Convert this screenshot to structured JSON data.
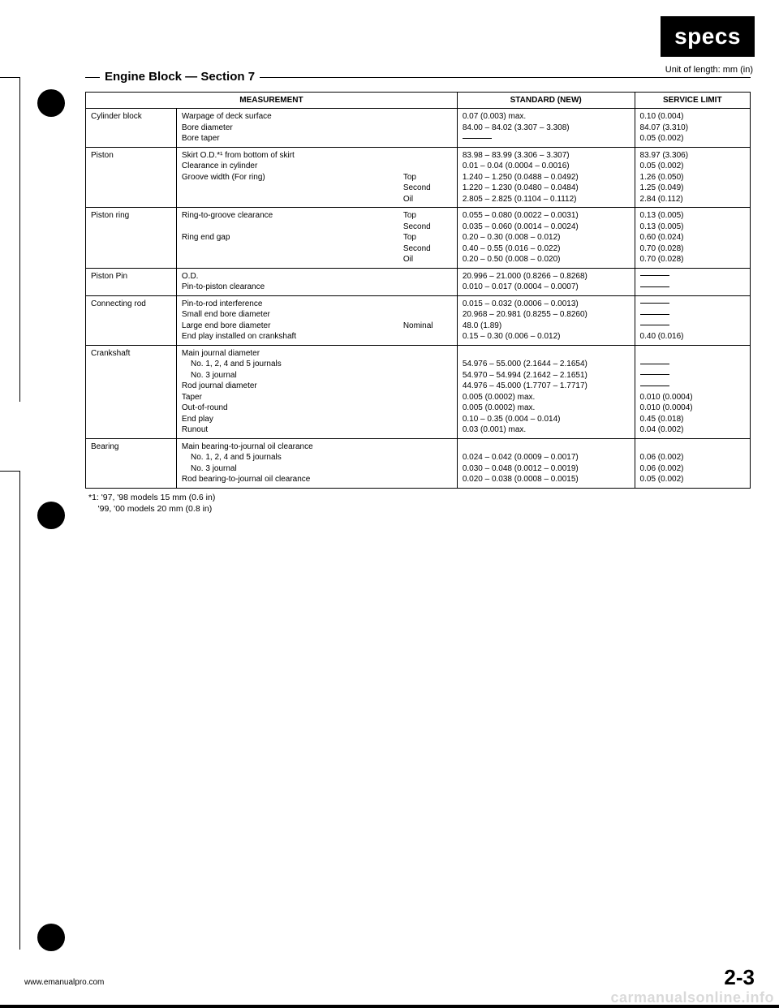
{
  "badge": "specs",
  "unit_note": "Unit of length: mm (in)",
  "section_title": "Engine Block — Section 7",
  "headers": {
    "measurement": "MEASUREMENT",
    "standard": "STANDARD (NEW)",
    "service_limit": "SERVICE LIMIT"
  },
  "rows": [
    {
      "item": "Cylinder block",
      "measurements": [
        {
          "label": "Warpage of deck surface",
          "sub": "",
          "std": "0.07 (0.003) max.",
          "lim": "0.10 (0.004)"
        },
        {
          "label": "Bore diameter",
          "sub": "",
          "std": "84.00 – 84.02 (3.307 – 3.308)",
          "lim": "84.07 (3.310)"
        },
        {
          "label": "Bore taper",
          "sub": "",
          "std": "—",
          "lim": "0.05 (0.002)"
        }
      ]
    },
    {
      "item": "Piston",
      "measurements": [
        {
          "label": "Skirt O.D.*¹ from bottom of skirt",
          "sub": "",
          "std": "83.98 – 83.99 (3.306 – 3.307)",
          "lim": "83.97 (3.306)"
        },
        {
          "label": "Clearance in cylinder",
          "sub": "",
          "std": "0.01 – 0.04 (0.0004 – 0.0016)",
          "lim": "0.05 (0.002)"
        },
        {
          "label": "Groove width (For ring)",
          "sub": "Top",
          "std": "1.240 – 1.250 (0.0488 – 0.0492)",
          "lim": "1.26 (0.050)"
        },
        {
          "label": "",
          "sub": "Second",
          "std": "1.220 – 1.230 (0.0480 – 0.0484)",
          "lim": "1.25 (0.049)"
        },
        {
          "label": "",
          "sub": "Oil",
          "std": "2.805 – 2.825 (0.1104 – 0.1112)",
          "lim": "2.84 (0.112)"
        }
      ]
    },
    {
      "item": "Piston ring",
      "measurements": [
        {
          "label": "Ring-to-groove clearance",
          "sub": "Top",
          "std": "0.055 – 0.080 (0.0022 – 0.0031)",
          "lim": "0.13 (0.005)"
        },
        {
          "label": "",
          "sub": "Second",
          "std": "0.035 – 0.060 (0.0014 – 0.0024)",
          "lim": "0.13 (0.005)"
        },
        {
          "label": "Ring end gap",
          "sub": "Top",
          "std": "0.20 – 0.30 (0.008 – 0.012)",
          "lim": "0.60 (0.024)"
        },
        {
          "label": "",
          "sub": "Second",
          "std": "0.40 – 0.55 (0.016 – 0.022)",
          "lim": "0.70 (0.028)"
        },
        {
          "label": "",
          "sub": "Oil",
          "std": "0.20 – 0.50 (0.008 – 0.020)",
          "lim": "0.70 (0.028)"
        }
      ]
    },
    {
      "item": "Piston Pin",
      "measurements": [
        {
          "label": "O.D.",
          "sub": "",
          "std": "20.996 – 21.000 (0.8266 – 0.8268)",
          "lim": "—"
        },
        {
          "label": "Pin-to-piston clearance",
          "sub": "",
          "std": "0.010 – 0.017 (0.0004 – 0.0007)",
          "lim": "—"
        }
      ]
    },
    {
      "item": "Connecting rod",
      "measurements": [
        {
          "label": "Pin-to-rod interference",
          "sub": "",
          "std": "0.015 – 0.032 (0.0006 – 0.0013)",
          "lim": "—"
        },
        {
          "label": "Small end bore diameter",
          "sub": "",
          "std": "20.968 – 20.981 (0.8255 – 0.8260)",
          "lim": "—"
        },
        {
          "label": "Large end bore diameter",
          "sub": "Nominal",
          "std": "48.0 (1.89)",
          "lim": "—"
        },
        {
          "label": "End play installed on crankshaft",
          "sub": "",
          "std": "0.15 – 0.30 (0.006 – 0.012)",
          "lim": "0.40 (0.016)"
        }
      ]
    },
    {
      "item": "Crankshaft",
      "measurements": [
        {
          "label": "Main journal diameter",
          "sub": "",
          "std": "",
          "lim": ""
        },
        {
          "label": "    No. 1, 2, 4 and 5 journals",
          "sub": "",
          "std": "54.976 – 55.000 (2.1644 – 2.1654)",
          "lim": "—"
        },
        {
          "label": "    No. 3 journal",
          "sub": "",
          "std": "54.970 – 54.994 (2.1642 – 2.1651)",
          "lim": "—"
        },
        {
          "label": "Rod journal diameter",
          "sub": "",
          "std": "44.976 – 45.000 (1.7707 – 1.7717)",
          "lim": "—"
        },
        {
          "label": "Taper",
          "sub": "",
          "std": "0.005 (0.0002) max.",
          "lim": "0.010 (0.0004)"
        },
        {
          "label": "Out-of-round",
          "sub": "",
          "std": "0.005 (0.0002) max.",
          "lim": "0.010 (0.0004)"
        },
        {
          "label": "End play",
          "sub": "",
          "std": "0.10 – 0.35 (0.004 – 0.014)",
          "lim": "0.45 (0.018)"
        },
        {
          "label": "Runout",
          "sub": "",
          "std": "0.03 (0.001) max.",
          "lim": "0.04 (0.002)"
        }
      ]
    },
    {
      "item": "Bearing",
      "measurements": [
        {
          "label": "Main bearing-to-journal oil clearance",
          "sub": "",
          "std": "",
          "lim": ""
        },
        {
          "label": "    No. 1, 2, 4 and 5 journals",
          "sub": "",
          "std": "0.024 – 0.042 (0.0009 – 0.0017)",
          "lim": "0.06 (0.002)"
        },
        {
          "label": "    No. 3 journal",
          "sub": "",
          "std": "0.030 – 0.048 (0.0012 – 0.0019)",
          "lim": "0.06 (0.002)"
        },
        {
          "label": "Rod bearing-to-journal oil clearance",
          "sub": "",
          "std": "0.020 – 0.038 (0.0008 – 0.0015)",
          "lim": "0.05 (0.002)"
        }
      ]
    }
  ],
  "footnote_line1": "*1: '97, '98 models 15 mm (0.6 in)",
  "footnote_line2": "    '99, '00 models 20 mm (0.8 in)",
  "footer_url": "www.emanualpro.com",
  "page_number": "2-3",
  "watermark": "carmanualsonline.info"
}
